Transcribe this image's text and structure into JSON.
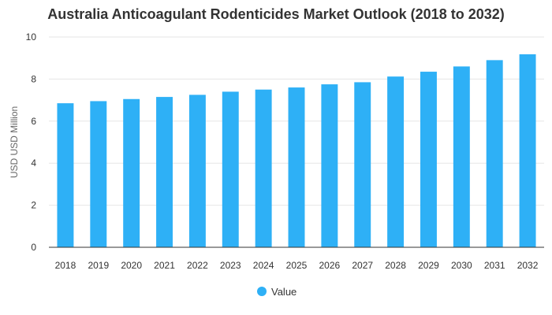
{
  "chart_data": {
    "type": "bar",
    "title": "Australia Anticoagulant Rodenticides Market Outlook (2018 to 2032)",
    "xlabel": "",
    "ylabel": "USD USD Million",
    "categories": [
      "2018",
      "2019",
      "2020",
      "2021",
      "2022",
      "2023",
      "2024",
      "2025",
      "2026",
      "2027",
      "2028",
      "2029",
      "2030",
      "2031",
      "2032"
    ],
    "series": [
      {
        "name": "Value",
        "values": [
          6.85,
          6.95,
          7.05,
          7.15,
          7.25,
          7.4,
          7.5,
          7.6,
          7.75,
          7.85,
          8.12,
          8.35,
          8.6,
          8.9,
          9.18
        ]
      }
    ],
    "ylim": [
      0,
      10
    ],
    "yticks": [
      0,
      2,
      4,
      6,
      8,
      10
    ],
    "grid": true,
    "legend_position": "bottom",
    "colors": {
      "bar": "#2eb0f6",
      "grid": "#e6e6e6",
      "axis": "#333333"
    }
  }
}
